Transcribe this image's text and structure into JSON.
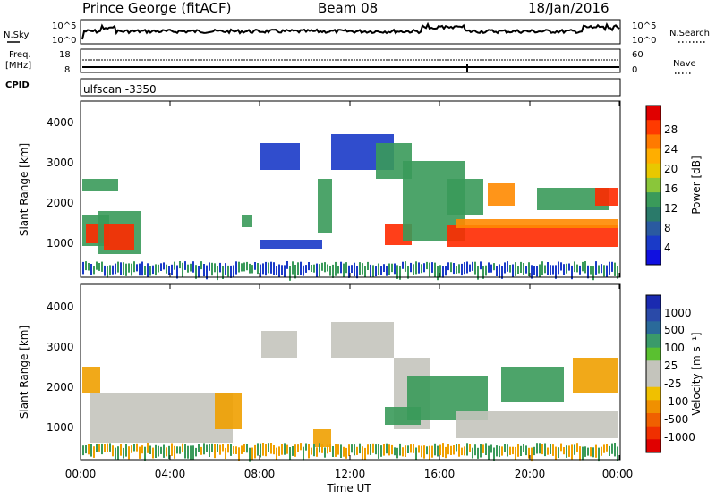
{
  "header": {
    "station": "Prince George (fitACF)",
    "beam": "Beam 08",
    "date": "18/Jan/2016"
  },
  "side_labels": {
    "nsky": "N.Sky",
    "nsearch": "N.Search",
    "freq": "Freq.",
    "freq_unit": "[MHz]",
    "nave": "Nave",
    "cpid": "CPID"
  },
  "noise_panel": {
    "left_ticks": [
      "10^5",
      "10^0"
    ],
    "right_ticks": [
      "10^5",
      "10^0"
    ]
  },
  "freq_panel": {
    "left_ticks": [
      "18",
      "8"
    ],
    "right_ticks": [
      "60",
      "0"
    ]
  },
  "cpid_panel": {
    "text": "ulfscan -3350"
  },
  "x_axis": {
    "label": "Time UT",
    "ticks": [
      "00:00",
      "04:00",
      "08:00",
      "12:00",
      "16:00",
      "20:00",
      "00:00"
    ]
  },
  "y_axis": {
    "label": "Slant Range [km]",
    "ticks": [
      "1000",
      "2000",
      "3000",
      "4000"
    ]
  },
  "power_colorbar": {
    "title": "Power [dB]",
    "labels": [
      "28",
      "24",
      "20",
      "16",
      "12",
      "8",
      "4"
    ],
    "colors": [
      "#e00000",
      "#ff3a00",
      "#ff7a00",
      "#ffae00",
      "#e8c800",
      "#8ac63a",
      "#3a9a5a",
      "#2a7a6a",
      "#2a5aa0",
      "#1a3ac8",
      "#1010e0"
    ]
  },
  "velocity_colorbar": {
    "title": "Velocity [m s⁻¹]",
    "labels": [
      "1000",
      "500",
      "100",
      "25",
      "-25",
      "-100",
      "-500",
      "-1000"
    ],
    "colors": [
      "#1a2ab0",
      "#2a4aa8",
      "#2a6a9a",
      "#3a9a6a",
      "#5ac030",
      "#c4c4bc",
      "#c4c4bc",
      "#f0c000",
      "#f09000",
      "#f06000",
      "#f03000",
      "#e00000"
    ]
  },
  "colors": {
    "power_strong": "#ff2a00",
    "power_medium": "#ff8a00",
    "power_weak": "#3a9a5a",
    "power_faint": "#1a3ac8",
    "vel_gray": "#c4c4bc",
    "vel_green": "#3a9a5a",
    "vel_orange": "#f0a000"
  },
  "chart_data": {
    "type": "heatmap",
    "title": "Prince George (fitACF)",
    "xlabel": "Time UT",
    "ylabel": "Slant Range [km]",
    "xlim": [
      "00:00",
      "24:00"
    ],
    "ylim": [
      180,
      4600
    ],
    "panels": [
      "Power [dB]",
      "Velocity [m s⁻¹]"
    ]
  }
}
